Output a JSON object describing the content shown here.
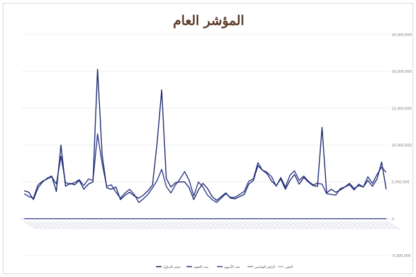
{
  "chart_data": {
    "type": "line",
    "title": "المؤشر العام",
    "xlabel": "",
    "ylabel": "",
    "ylim": [
      -5000000,
      25000000
    ],
    "yticks": [
      -5000000,
      0,
      5000000,
      10000000,
      15000000,
      20000000,
      25000000
    ],
    "ytick_labels": [
      "-5,000,000",
      "0",
      "5,000,000",
      "10,000,000",
      "15,000,000",
      "20,000,000",
      "25,000,000"
    ],
    "yaxis_position": "right",
    "grid": true,
    "legend_position": "bottom",
    "x_count": 80,
    "series": [
      {
        "name": "حجم التداول",
        "color": "#1f2a6e",
        "values": [
          3800000,
          3600000,
          2600000,
          4200000,
          5000000,
          5500000,
          5800000,
          3700000,
          10000000,
          4400000,
          4800000,
          4600000,
          5200000,
          4000000,
          4700000,
          5000000,
          20300000,
          8700000,
          4200000,
          4000000,
          4300000,
          2600000,
          3200000,
          3600000,
          3100000,
          2800000,
          3200000,
          3800000,
          4600000,
          10300000,
          17500000,
          5500000,
          4300000,
          4900000,
          5000000,
          5000000,
          4200000,
          2600000,
          3900000,
          4800000,
          4100000,
          3000000,
          2500000,
          3000000,
          3500000,
          2800000,
          2700000,
          3000000,
          3300000,
          4700000,
          5200000,
          7200000,
          6600000,
          6100000,
          5100000,
          4500000,
          5400000,
          4000000,
          5200000,
          6000000,
          4700000,
          5600000,
          5000000,
          4500000,
          4400000,
          12400000,
          3500000,
          4000000,
          3600000,
          3900000,
          4300000,
          4800000,
          4100000,
          4500000,
          4300000,
          5200000,
          4400000,
          5400000,
          7700000,
          4000000
        ]
      },
      {
        "name": "عدد العقود",
        "color": "#2e3a8c",
        "values": [
          3400000,
          3000000,
          2800000,
          4600000,
          5100000,
          5400000,
          5700000,
          4700000,
          8500000,
          4900000,
          4700000,
          4900000,
          5300000,
          4500000,
          5400000,
          5200000,
          11500000,
          7500000,
          4400000,
          4600000,
          3600000,
          2800000,
          3500000,
          4000000,
          3300000,
          2200000,
          2700000,
          3300000,
          4200000,
          5200000,
          6700000,
          4400000,
          3500000,
          4600000,
          5400000,
          6400000,
          5200000,
          3100000,
          5000000,
          4300000,
          3200000,
          2600000,
          2200000,
          2800000,
          3400000,
          2900000,
          2900000,
          3300000,
          3700000,
          5100000,
          5400000,
          7600000,
          6600000,
          6300000,
          5700000,
          4400000,
          5600000,
          4300000,
          5900000,
          6500000,
          5200000,
          5800000,
          5100000,
          4600000,
          4800000,
          4700000,
          3400000,
          3300000,
          3200000,
          4100000,
          4300000,
          4600000,
          3900000,
          4700000,
          4300000,
          5700000,
          4800000,
          6000000,
          7000000,
          6300000
        ]
      },
      {
        "name": "عدد الأسهم",
        "color": "#3d4b9e",
        "values": [
          0,
          0,
          0,
          0,
          0,
          0,
          0,
          0,
          0,
          0,
          0,
          0,
          0,
          0,
          0,
          0,
          0,
          0,
          0,
          0,
          0,
          0,
          0,
          0,
          0,
          0,
          0,
          0,
          0,
          0,
          0,
          0,
          0,
          0,
          0,
          0,
          0,
          0,
          0,
          0,
          0,
          0,
          0,
          0,
          0,
          0,
          0,
          0,
          0,
          0,
          0,
          0,
          0,
          0,
          0,
          0,
          0,
          0,
          0,
          0,
          0,
          0,
          0,
          0,
          0,
          0,
          0,
          0,
          0,
          0,
          0,
          0,
          0,
          0,
          0,
          0,
          0,
          0,
          0,
          0
        ]
      },
      {
        "name": "الرقم القياسي",
        "color": "#8d8fb0",
        "values": [
          0,
          0,
          0,
          0,
          0,
          0,
          0,
          0,
          0,
          0,
          0,
          0,
          0,
          0,
          0,
          0,
          0,
          0,
          0,
          0,
          0,
          0,
          0,
          0,
          0,
          0,
          0,
          0,
          0,
          0,
          0,
          0,
          0,
          0,
          0,
          0,
          0,
          0,
          0,
          0,
          0,
          0,
          0,
          0,
          0,
          0,
          0,
          0,
          0,
          0,
          0,
          0,
          0,
          0,
          0,
          0,
          0,
          0,
          0,
          0,
          0,
          0,
          0,
          0,
          0,
          0,
          0,
          0,
          0,
          0,
          0,
          0,
          0,
          0,
          0,
          0,
          0,
          0,
          0,
          0
        ]
      },
      {
        "name": "التغير",
        "color": "#b7b3cf",
        "values": [
          0,
          0,
          0,
          0,
          0,
          0,
          0,
          0,
          0,
          0,
          0,
          0,
          0,
          0,
          0,
          0,
          0,
          0,
          0,
          0,
          0,
          0,
          0,
          0,
          0,
          0,
          0,
          0,
          0,
          0,
          0,
          0,
          0,
          0,
          0,
          0,
          0,
          0,
          0,
          0,
          0,
          0,
          0,
          0,
          0,
          0,
          0,
          0,
          0,
          0,
          0,
          0,
          0,
          0,
          0,
          0,
          0,
          0,
          0,
          0,
          0,
          0,
          0,
          0,
          0,
          0,
          0,
          0,
          0,
          0,
          0,
          0,
          0,
          0,
          0,
          0,
          0,
          0,
          0,
          0
        ]
      }
    ]
  }
}
